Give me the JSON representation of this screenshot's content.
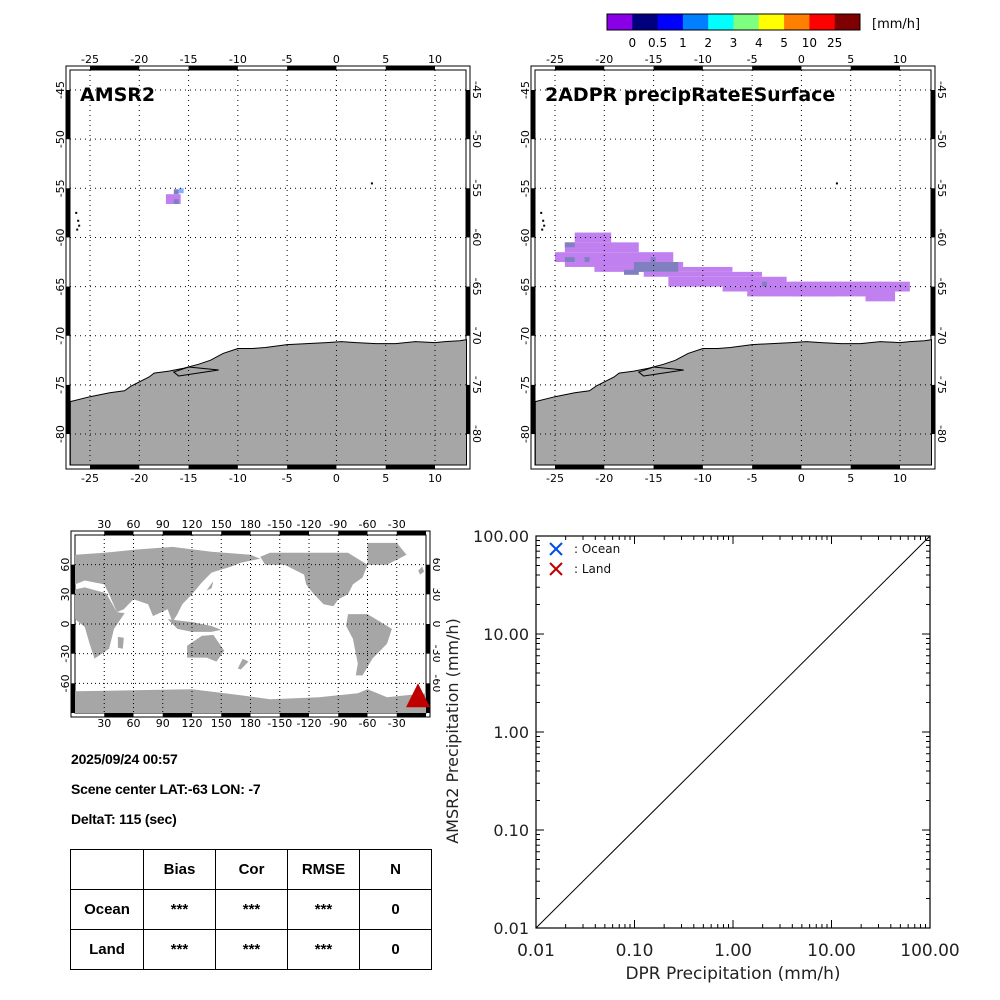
{
  "colorbar": {
    "unit": "[mm/h]",
    "colors": [
      "#8a00e6",
      "#00007f",
      "#0000ff",
      "#0080ff",
      "#00ffff",
      "#7fff7f",
      "#ffff00",
      "#ff8000",
      "#ff0000",
      "#7f0000"
    ],
    "labels": [
      "0",
      "0.5",
      "1",
      "2",
      "3",
      "4",
      "5",
      "10",
      "25"
    ]
  },
  "maps": [
    {
      "title": "AMSR2",
      "lon_ticks": [
        "-25",
        "-20",
        "-15",
        "-10",
        "-5",
        "0",
        "5",
        "10"
      ],
      "lat_ticks": [
        "-45",
        "-50",
        "-55",
        "-60",
        "-65",
        "-70",
        "-75",
        "-80"
      ]
    },
    {
      "title": "2ADPR precipRateESurface",
      "lon_ticks": [
        "-25",
        "-20",
        "-15",
        "-10",
        "-5",
        "0",
        "5",
        "10"
      ],
      "lat_ticks": [
        "-45",
        "-50",
        "-55",
        "-60",
        "-65",
        "-70",
        "-75",
        "-80"
      ]
    }
  ],
  "world_map": {
    "lon_ticks": [
      "30",
      "60",
      "90",
      "120",
      "150",
      "180",
      "-150",
      "-120",
      "-90",
      "-60",
      "-30"
    ],
    "lat_ticks": [
      "60",
      "30",
      "0",
      "-30",
      "-60"
    ],
    "marker_color": "#c00000"
  },
  "info": {
    "datetime": "2025/09/24 00:57",
    "scene_center": "Scene center LAT:-63   LON:  -7",
    "delta_t": "DeltaT:  115 (sec)"
  },
  "stats_table": {
    "headers": [
      "",
      "Bias",
      "Cor",
      "RMSE",
      "N"
    ],
    "rows": [
      {
        "label": "Ocean",
        "bias": "***",
        "cor": "***",
        "rmse": "***",
        "n": "0"
      },
      {
        "label": "Land",
        "bias": "***",
        "cor": "***",
        "rmse": "***",
        "n": "0"
      }
    ]
  },
  "chart_data": {
    "type": "scatter",
    "title": "",
    "xlabel": "DPR Precipitation (mm/h)",
    "ylabel": "AMSR2 Precipitation (mm/h)",
    "xscale": "log",
    "yscale": "log",
    "xlim": [
      0.01,
      100
    ],
    "ylim": [
      0.01,
      100
    ],
    "x_tick_labels": [
      "0.01",
      "0.10",
      "1.00",
      "10.00",
      "100.00"
    ],
    "y_tick_labels": [
      "0.01",
      "0.10",
      "1.00",
      "10.00",
      "100.00"
    ],
    "reference_line": "1:1",
    "legend": [
      {
        "label": ": Ocean",
        "color": "#0050e6",
        "marker": "x"
      },
      {
        "label": ": Land",
        "color": "#c00000",
        "marker": "x"
      }
    ],
    "legend_position": "top-left",
    "series": [
      {
        "name": "Ocean",
        "points": []
      },
      {
        "name": "Land",
        "points": []
      }
    ]
  }
}
